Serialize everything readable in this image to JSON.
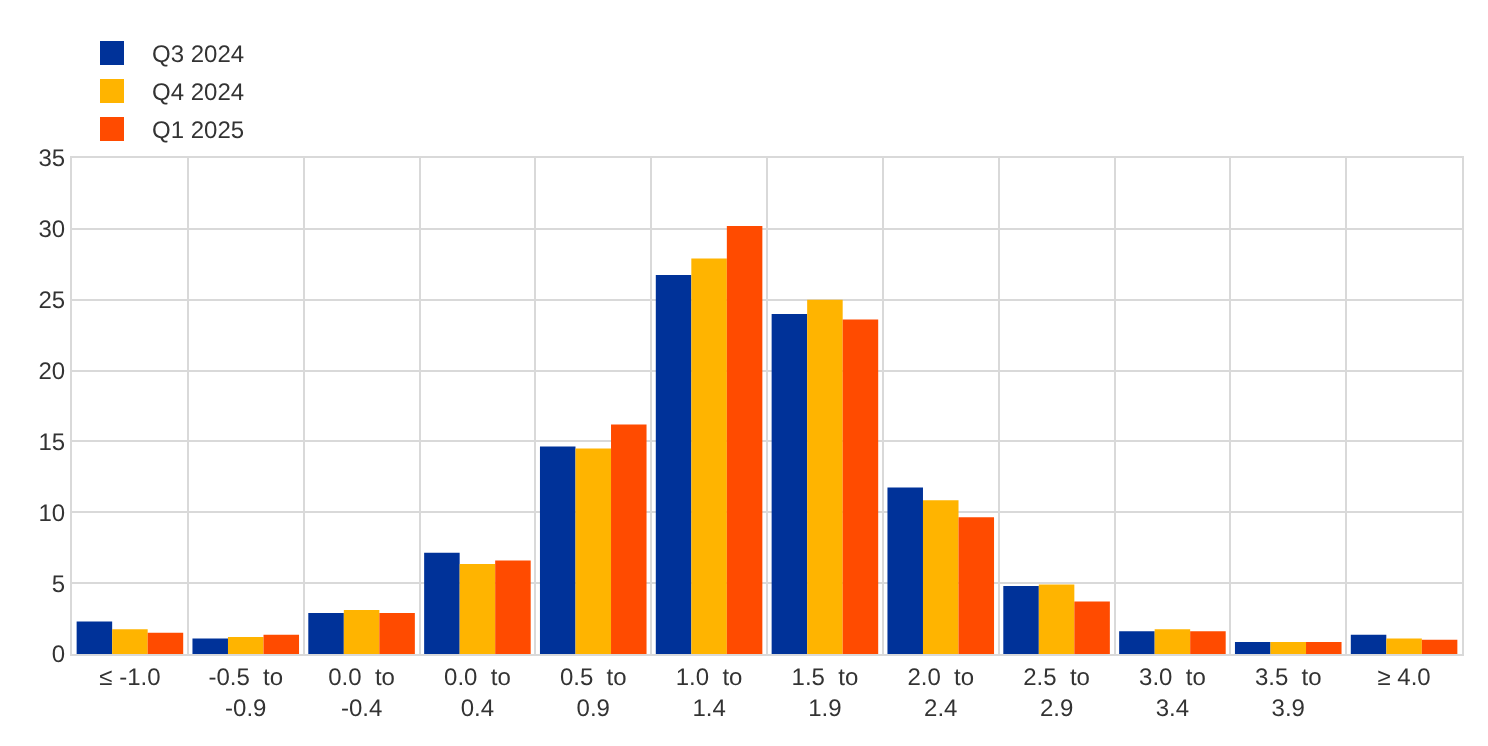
{
  "chart_data": {
    "type": "bar",
    "categories": [
      "≤ -1.0",
      "-0.5  to\n-0.9",
      "0.0  to\n-0.4",
      "0.0  to\n0.4",
      "0.5  to\n0.9",
      "1.0  to\n1.4",
      "1.5  to\n1.9",
      "2.0  to\n2.4",
      "2.5  to\n2.9",
      "3.0  to\n3.4",
      "3.5  to\n3.9",
      "≥ 4.0"
    ],
    "series": [
      {
        "name": "Q3 2024",
        "color": "#003299",
        "values": [
          2.3,
          1.1,
          2.9,
          7.15,
          14.65,
          26.75,
          24.0,
          11.75,
          4.8,
          1.6,
          0.85,
          1.35
        ]
      },
      {
        "name": "Q4 2024",
        "color": "#ffb400",
        "values": [
          1.75,
          1.2,
          3.1,
          6.35,
          14.5,
          27.9,
          25.0,
          10.85,
          4.9,
          1.75,
          0.85,
          1.1
        ]
      },
      {
        "name": "Q1 2025",
        "color": "#ff4b00",
        "values": [
          1.5,
          1.35,
          2.9,
          6.6,
          16.2,
          30.2,
          23.6,
          9.65,
          3.7,
          1.6,
          0.85,
          1.0
        ]
      }
    ],
    "ylim": [
      0,
      35
    ],
    "yticks": [
      0,
      5,
      10,
      15,
      20,
      25,
      30,
      35
    ],
    "grid": true,
    "legend": "top left"
  }
}
